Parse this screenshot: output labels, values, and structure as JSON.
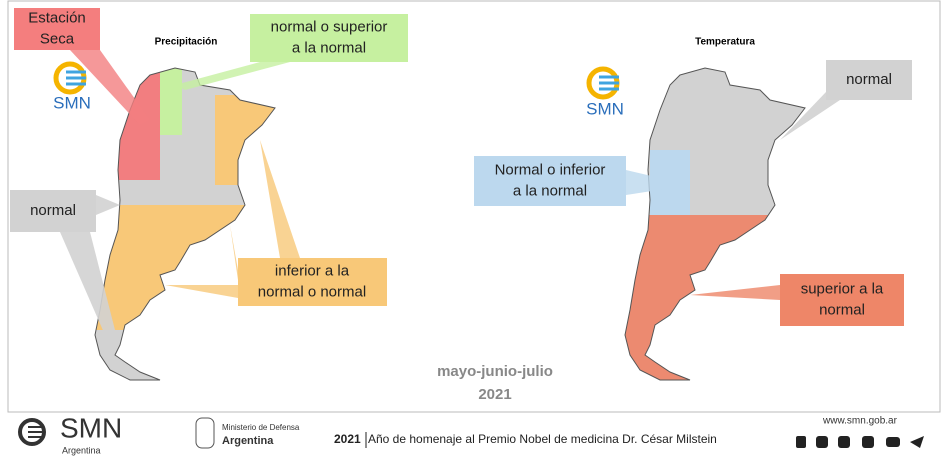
{
  "maps": [
    {
      "title": "Precipitación",
      "logo": "SMN",
      "labels": [
        {
          "lines": [
            "Estación",
            "Seca"
          ]
        },
        {
          "lines": [
            "normal o superior",
            "a la normal"
          ]
        },
        {
          "lines": [
            "normal"
          ]
        },
        {
          "lines": [
            "inferior a la",
            "normal o normal"
          ]
        }
      ]
    },
    {
      "title": "Temperatura",
      "logo": "SMN",
      "labels": [
        {
          "lines": [
            "Normal o inferior",
            "a la normal"
          ]
        },
        {
          "lines": [
            "normal"
          ]
        },
        {
          "lines": [
            "superior a la",
            "normal"
          ]
        }
      ]
    }
  ],
  "period": [
    "mayo-junio-julio",
    "2021"
  ],
  "footer": {
    "logo": "SMN",
    "logo_sub": "Argentina",
    "ministry": [
      "Ministerio de Defensa",
      "Argentina"
    ],
    "year": "2021",
    "motto": "Año de homenaje al Premio Nobel de medicina Dr. César Milstein",
    "url": "www.smn.gob.ar"
  }
}
